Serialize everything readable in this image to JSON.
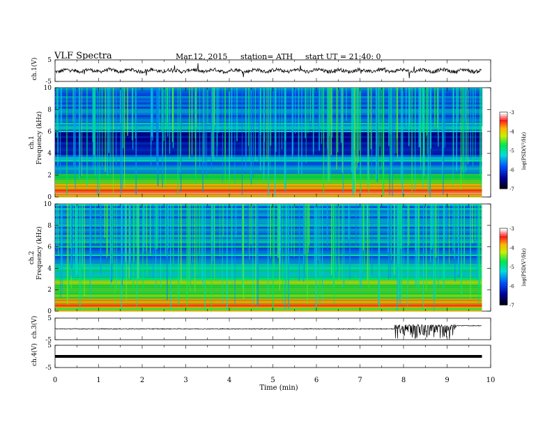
{
  "header": {
    "title": "VLF  Spectra",
    "date": "Mar.12, 2015",
    "station": "station= ATH",
    "start": "start  UT =   21:40: 0"
  },
  "chart_data": [
    {
      "type": "line",
      "name": "ch1-waveform",
      "ylabel": "ch.1(V)",
      "ylim": [
        -5,
        5
      ],
      "yticks": [
        "5",
        "-5"
      ],
      "x_range_min": [
        0,
        9.8
      ],
      "baseline_v": 0
    },
    {
      "type": "heatmap",
      "name": "ch1-spectrogram",
      "ylabel": "ch.1\nFrequency  (kHz)",
      "ylabel_line1": "ch.1",
      "ylabel_line2": "Frequency  (kHz)",
      "ylim": [
        0,
        10
      ],
      "yticks": [
        "0",
        "2",
        "4",
        "6",
        "8",
        "10"
      ],
      "colorbar": {
        "label": "log(PSD(V²/Hz)",
        "range": [
          -7,
          -3
        ],
        "ticks": [
          "-3",
          "-4",
          "-5",
          "-6",
          "-7"
        ]
      }
    },
    {
      "type": "heatmap",
      "name": "ch2-spectrogram",
      "ylabel_line1": "ch.2",
      "ylabel_line2": "Frequency  (kHz)",
      "ylim": [
        0,
        10
      ],
      "yticks": [
        "0",
        "2",
        "4",
        "6",
        "8",
        "10"
      ],
      "colorbar": {
        "label": "log(PSD(V²/Hz)",
        "range": [
          -7,
          -3
        ],
        "ticks": [
          "-3",
          "-4",
          "-5",
          "-6",
          "-7"
        ]
      }
    },
    {
      "type": "line",
      "name": "ch3-waveform",
      "ylabel": "ch.3(V)",
      "ylim": [
        -5,
        5
      ],
      "yticks": [
        "5",
        "-5"
      ],
      "baseline_v": 0,
      "burst_start_min": 7.8,
      "burst_end_min": 9.2,
      "level_after_burst_v": 1.5
    },
    {
      "type": "line",
      "name": "ch4-waveform",
      "ylabel": "ch.4(V)",
      "ylim": [
        -5,
        5
      ],
      "yticks": [
        "5",
        "-5"
      ],
      "baseline_v": 0
    }
  ],
  "xaxis": {
    "label": "Time  (min)",
    "range": [
      0,
      10
    ],
    "ticks": [
      "0",
      "1",
      "2",
      "3",
      "4",
      "5",
      "6",
      "7",
      "8",
      "9",
      "10"
    ]
  }
}
